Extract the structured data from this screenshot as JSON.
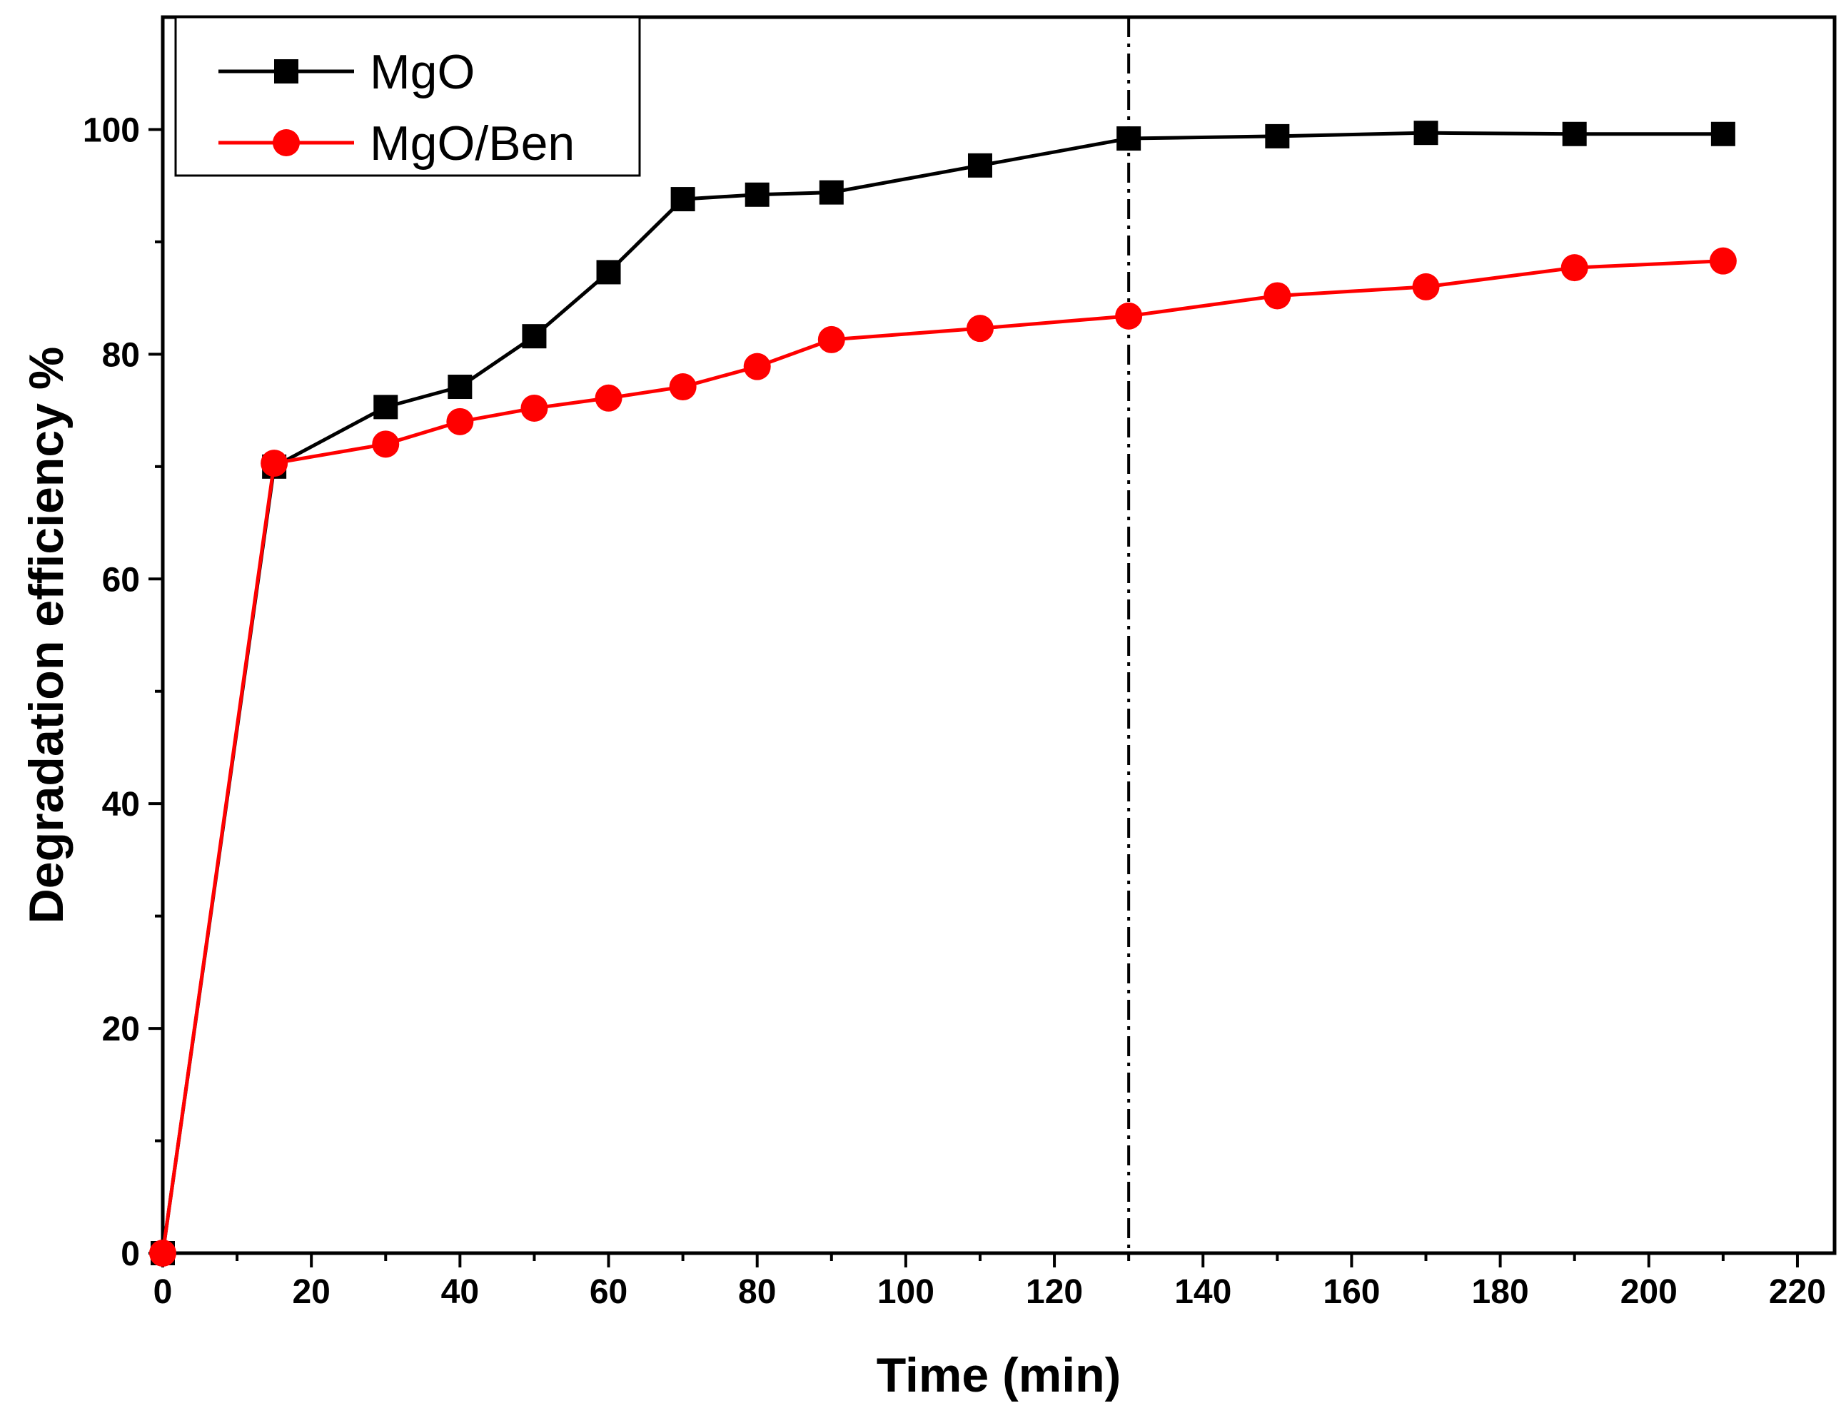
{
  "chart_data": {
    "type": "line",
    "title": "",
    "xlabel": "Time (min)",
    "ylabel": "Degradation efficiency %",
    "xlim": [
      0,
      225
    ],
    "ylim": [
      0,
      110
    ],
    "x_ticks": [
      0,
      20,
      40,
      60,
      80,
      100,
      120,
      140,
      160,
      180,
      200,
      220
    ],
    "y_ticks": [
      0,
      20,
      40,
      60,
      80,
      100
    ],
    "x_minor_ticks": [
      10,
      30,
      50,
      70,
      90,
      110,
      130,
      150,
      170,
      190,
      210
    ],
    "y_minor_ticks": [
      10,
      30,
      50,
      70,
      90
    ],
    "vertical_reference_line": 130,
    "legend_position": "top-left",
    "grid": false,
    "series": [
      {
        "name": "MgO",
        "color": "#000000",
        "marker": "square",
        "x": [
          0,
          15,
          30,
          40,
          50,
          60,
          70,
          80,
          90,
          110,
          130,
          150,
          170,
          190,
          210
        ],
        "values": [
          0,
          70.0,
          75.3,
          77.1,
          81.6,
          87.3,
          93.8,
          94.2,
          94.4,
          96.8,
          99.2,
          99.4,
          99.7,
          99.6,
          99.6
        ]
      },
      {
        "name": "MgO/Ben",
        "color": "#ff0000",
        "marker": "circle",
        "x": [
          0,
          15,
          30,
          40,
          50,
          60,
          70,
          80,
          90,
          110,
          130,
          150,
          170,
          190,
          210
        ],
        "values": [
          0,
          70.3,
          72.0,
          74.0,
          75.2,
          76.1,
          77.1,
          78.9,
          81.3,
          82.3,
          83.4,
          85.2,
          86.0,
          87.7,
          88.3
        ]
      }
    ]
  }
}
